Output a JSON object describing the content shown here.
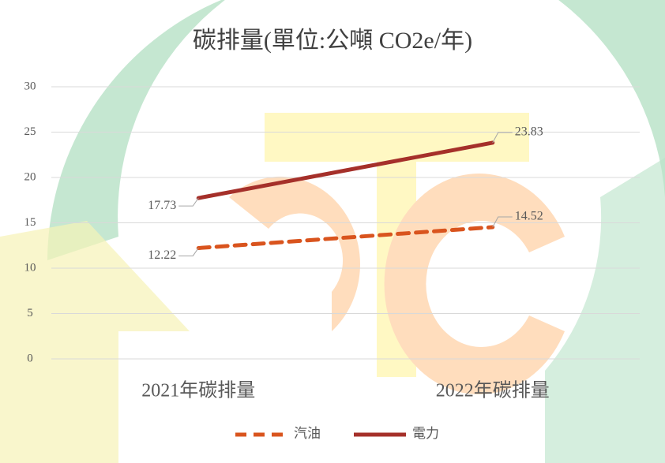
{
  "chart_data": {
    "type": "line",
    "title": "碳排量(單位:公噸 CO2e/年)",
    "categories": [
      "2021年碳排量",
      "2022年碳排量"
    ],
    "series": [
      {
        "name": "汽油",
        "color": "#d9541e",
        "line_style": "dashed",
        "values": [
          12.22,
          14.52
        ]
      },
      {
        "name": "電力",
        "color": "#a5302a",
        "line_style": "solid",
        "values": [
          17.73,
          23.83
        ]
      }
    ],
    "ylim": [
      0,
      30
    ],
    "yticks": [
      0,
      5,
      10,
      15,
      20,
      25,
      30
    ],
    "grid": true,
    "legend": "bottom"
  }
}
